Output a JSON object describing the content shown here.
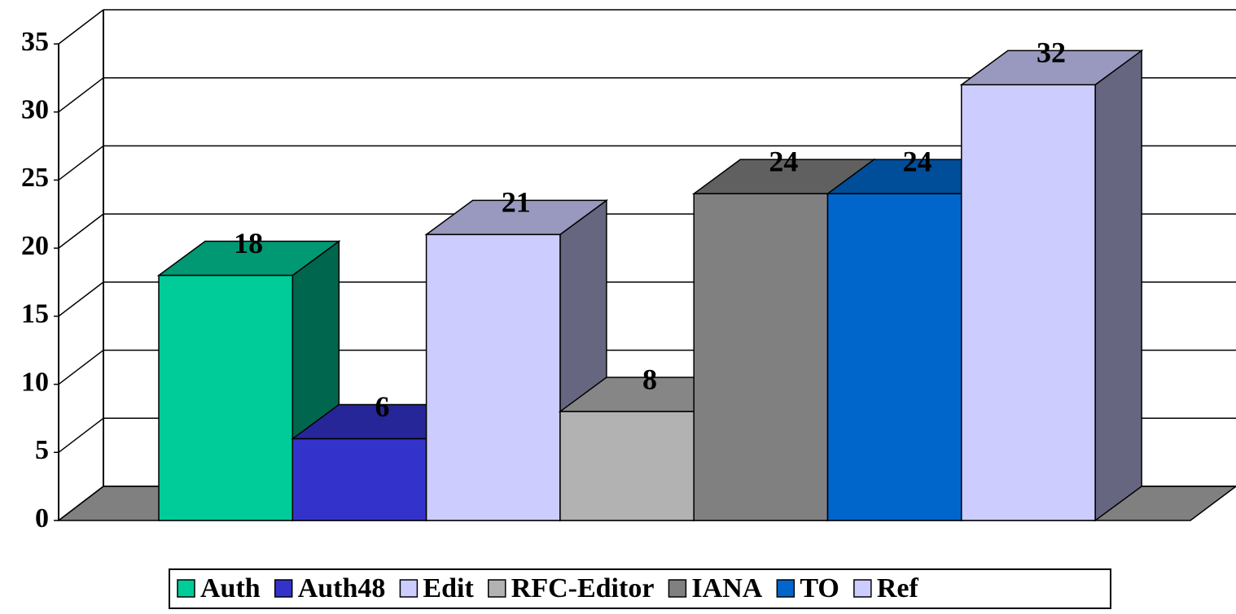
{
  "chart_data": {
    "type": "bar3d",
    "series": [
      {
        "name": "Auth",
        "color": "#00cc99",
        "values": [
          18
        ]
      },
      {
        "name": "Auth48",
        "color": "#3333cc",
        "values": [
          6
        ]
      },
      {
        "name": "Edit",
        "color": "#ccccff",
        "values": [
          21
        ]
      },
      {
        "name": "RFC-Editor",
        "color": "#b2b2b2",
        "values": [
          8
        ]
      },
      {
        "name": "IANA",
        "color": "#808080",
        "values": [
          24
        ]
      },
      {
        "name": "TO",
        "color": "#0066cc",
        "values": [
          24
        ]
      },
      {
        "name": "Ref",
        "color": "#ccccff",
        "values": [
          32
        ]
      }
    ],
    "ylim": [
      0,
      35
    ],
    "yticks": [
      0,
      5,
      10,
      15,
      20,
      25,
      30,
      35
    ],
    "grid": true,
    "legend": "bottom"
  }
}
